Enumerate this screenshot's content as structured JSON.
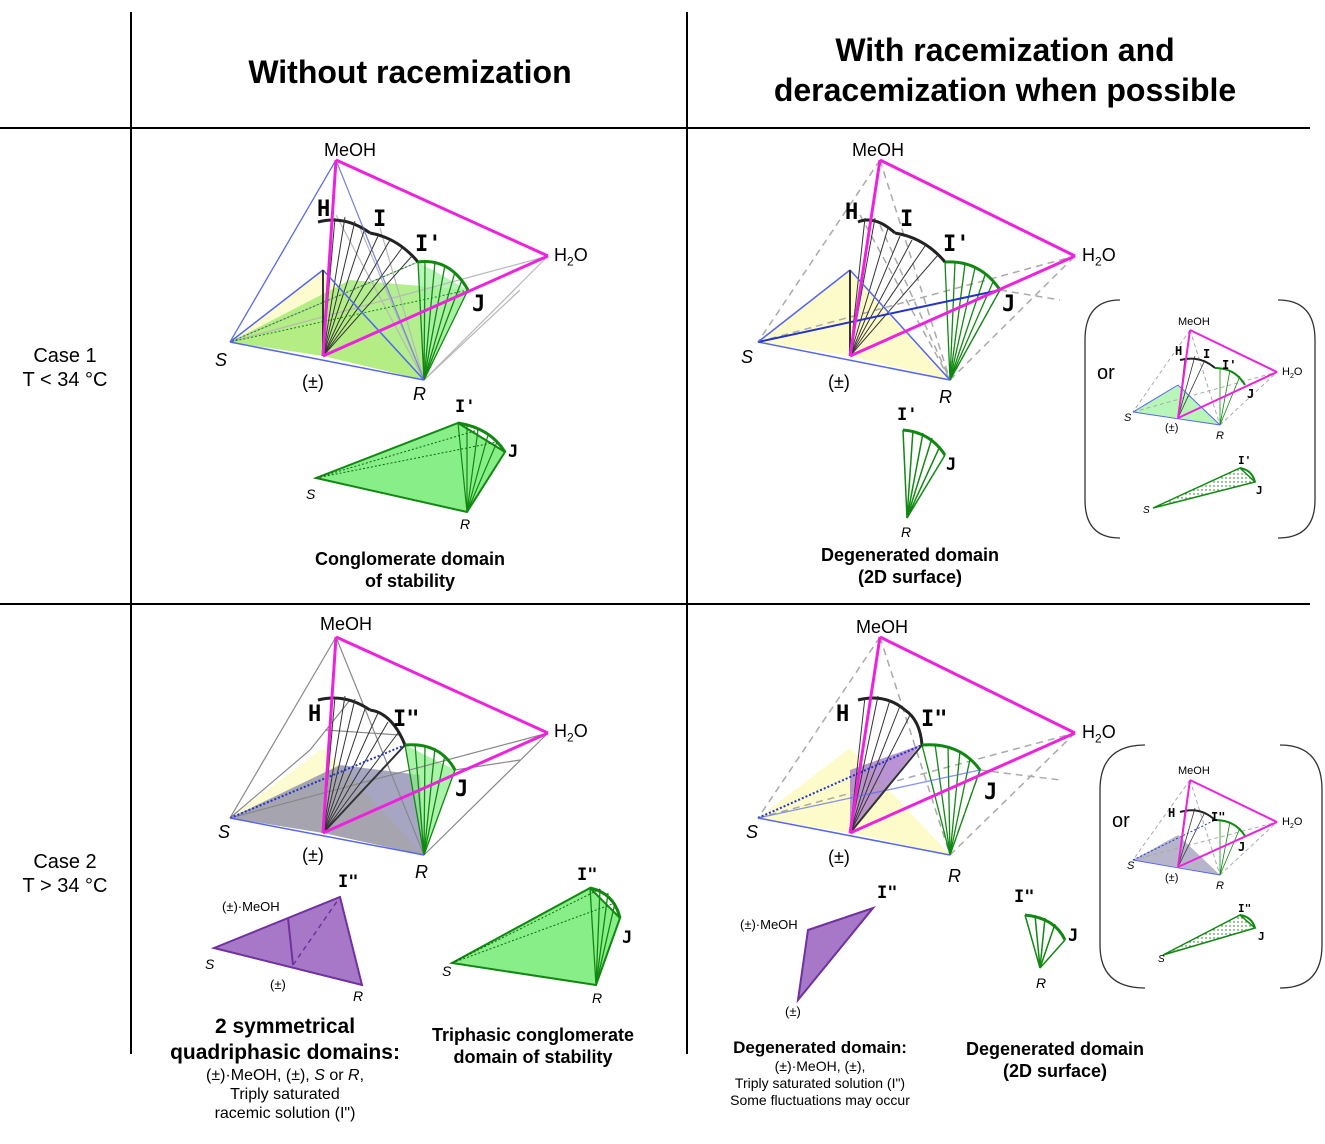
{
  "headers": {
    "col1": "Without racemization",
    "col2_line1": "With racemization and",
    "col2_line2": "deracemization when possible"
  },
  "rows": {
    "case1": {
      "line1": "Case 1",
      "line2": "T < 34 °C"
    },
    "case2": {
      "line1": "Case 2",
      "line2": "T > 34 °C"
    }
  },
  "vertex_labels": {
    "meoh": "MeOH",
    "h2o_main": "H",
    "h2o_sub": "2",
    "h2o_tail": "O",
    "s": "S",
    "r": "R",
    "racemic": "(±)",
    "h": "H",
    "i": "I",
    "i_prime": "I'",
    "i_double": "I\"",
    "j": "J",
    "racemic_meoh": "(±)·MeOH",
    "or": "or"
  },
  "captions": {
    "c1_left_l1": "Conglomerate domain",
    "c1_left_l2": "of stability",
    "c1_right_l1": "Degenerated domain",
    "c1_right_l2": "(2D surface)",
    "c2_left_a_l1": "2 symmetrical",
    "c2_left_a_l2": "quadriphasic domains:",
    "c2_left_a_l3_a": "(±)·MeOH, (±), ",
    "c2_left_a_l3_s": "S",
    "c2_left_a_l3_or": " or ",
    "c2_left_a_l3_r": "R",
    "c2_left_a_l3_end": ",",
    "c2_left_a_l4": "Triply saturated",
    "c2_left_a_l5": "racemic solution (I\")",
    "c2_left_b_l1": "Triphasic conglomerate",
    "c2_left_b_l2": "domain of stability",
    "c2_right_a_l1": "Degenerated domain:",
    "c2_right_a_l2": "(±)·MeOH, (±),",
    "c2_right_a_l3": "Triply saturated solution (I\")",
    "c2_right_a_l4": "Some fluctuations may occur",
    "c2_right_b_l1": "Degenerated domain",
    "c2_right_b_l2": "(2D surface)"
  },
  "colors": {
    "magenta": "#ee22dd",
    "green": "#118811",
    "green_fill": "#88ee88",
    "yellow_fill": "#fdfbc4",
    "blue": "#5566ee",
    "purple_fill": "#a878c8",
    "purple_line": "#7030a0",
    "gray": "#aaaaaa"
  }
}
